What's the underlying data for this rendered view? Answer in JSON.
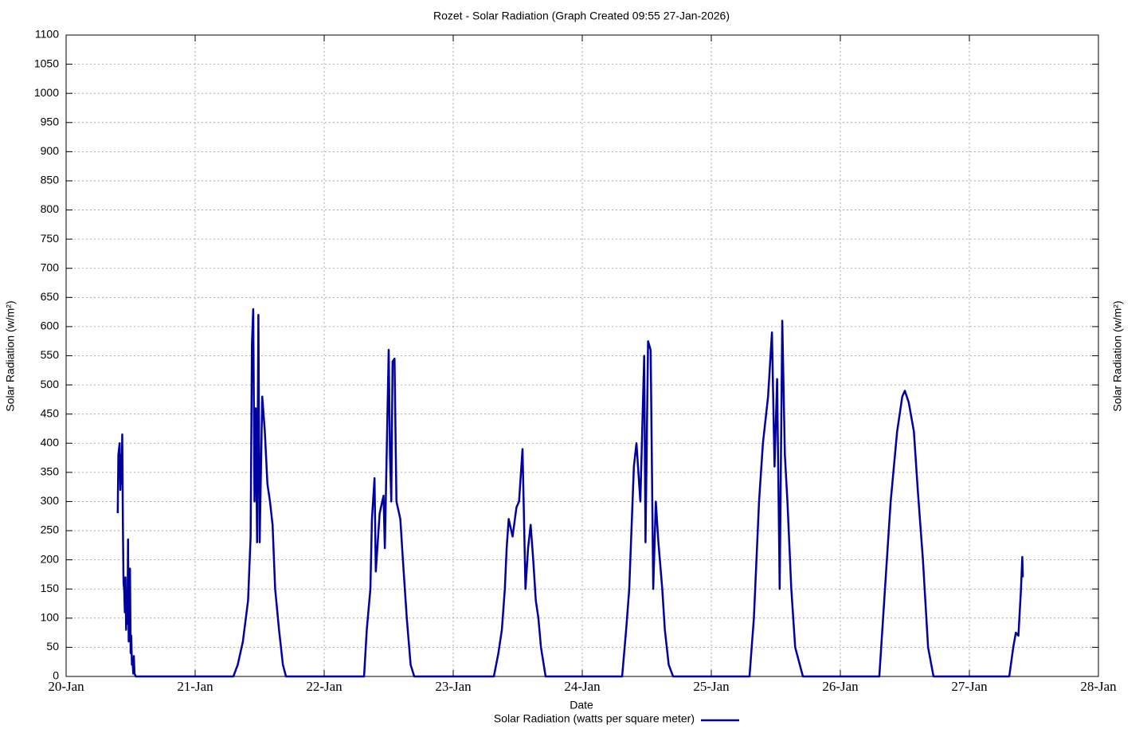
{
  "chart_data": {
    "type": "line",
    "title": "Rozet - Solar Radiation (Graph Created 09:55 27-Jan-2026)",
    "xlabel": "Date",
    "ylabel": "Solar Radiation (w/m²)",
    "y2label": "Solar Radiation (w/m²)",
    "xlim": [
      0,
      8
    ],
    "xticks": [
      {
        "value": 0,
        "label": "20-Jan"
      },
      {
        "value": 1,
        "label": "21-Jan"
      },
      {
        "value": 2,
        "label": "22-Jan"
      },
      {
        "value": 3,
        "label": "23-Jan"
      },
      {
        "value": 4,
        "label": "24-Jan"
      },
      {
        "value": 5,
        "label": "25-Jan"
      },
      {
        "value": 6,
        "label": "26-Jan"
      },
      {
        "value": 7,
        "label": "27-Jan"
      },
      {
        "value": 8,
        "label": "28-Jan"
      }
    ],
    "ylim": [
      0,
      1100
    ],
    "yticks": [
      0,
      50,
      100,
      150,
      200,
      250,
      300,
      350,
      400,
      450,
      500,
      550,
      600,
      650,
      700,
      750,
      800,
      850,
      900,
      950,
      1000,
      1050,
      1100
    ],
    "grid": true,
    "legend": "bottom",
    "series": [
      {
        "name": "Solar Radiation (watts per square meter)",
        "color": "#0000a0",
        "x": [
          0.4,
          0.405,
          0.415,
          0.42,
          0.425,
          0.43,
          0.435,
          0.44,
          0.445,
          0.45,
          0.455,
          0.46,
          0.465,
          0.47,
          0.475,
          0.48,
          0.485,
          0.49,
          0.495,
          0.5,
          0.505,
          0.51,
          0.515,
          0.52,
          0.525,
          0.53,
          0.54,
          1.296,
          1.33,
          1.37,
          1.41,
          1.43,
          1.44,
          1.45,
          1.46,
          1.47,
          1.48,
          1.49,
          1.5,
          1.52,
          1.54,
          1.56,
          1.58,
          1.6,
          1.62,
          1.65,
          1.68,
          1.704,
          2.309,
          2.33,
          2.358,
          2.37,
          2.39,
          2.4,
          2.43,
          2.46,
          2.47,
          2.5,
          2.51,
          2.52,
          2.53,
          2.545,
          2.56,
          2.59,
          2.61,
          2.64,
          2.67,
          2.698,
          3.315,
          3.35,
          3.377,
          3.4,
          3.414,
          3.43,
          3.46,
          3.49,
          3.51,
          3.537,
          3.56,
          3.58,
          3.6,
          3.62,
          3.64,
          3.66,
          3.68,
          3.716,
          4.309,
          4.34,
          4.364,
          4.4,
          4.42,
          4.45,
          4.48,
          4.49,
          4.51,
          4.53,
          4.55,
          4.57,
          4.59,
          4.62,
          4.64,
          4.67,
          4.704,
          5.296,
          5.33,
          5.35,
          5.37,
          5.4,
          5.44,
          5.47,
          5.49,
          5.51,
          5.53,
          5.55,
          5.57,
          5.59,
          5.62,
          5.65,
          5.71,
          6.302,
          6.34,
          6.39,
          6.44,
          6.48,
          6.5,
          6.53,
          6.57,
          6.6,
          6.64,
          6.68,
          6.722,
          7.309,
          7.34,
          7.36,
          7.38,
          7.4,
          7.41,
          7.414
        ],
        "values": [
          280,
          380,
          400,
          320,
          380,
          330,
          415,
          260,
          160,
          150,
          110,
          170,
          80,
          140,
          90,
          235,
          60,
          150,
          185,
          40,
          70,
          20,
          30,
          5,
          35,
          5,
          0,
          0,
          20,
          60,
          130,
          240,
          570,
          630,
          300,
          460,
          230,
          620,
          230,
          480,
          420,
          330,
          300,
          260,
          150,
          80,
          20,
          0,
          0,
          80,
          150,
          270,
          340,
          180,
          280,
          310,
          220,
          560,
          380,
          300,
          540,
          545,
          300,
          270,
          200,
          100,
          20,
          0,
          0,
          40,
          80,
          150,
          220,
          270,
          240,
          290,
          300,
          390,
          150,
          220,
          260,
          200,
          130,
          100,
          50,
          0,
          0,
          80,
          150,
          360,
          400,
          300,
          550,
          230,
          575,
          560,
          150,
          300,
          230,
          150,
          80,
          20,
          0,
          0,
          100,
          200,
          300,
          400,
          480,
          590,
          360,
          510,
          150,
          610,
          380,
          300,
          150,
          50,
          0,
          0,
          130,
          300,
          420,
          480,
          490,
          470,
          420,
          320,
          200,
          50,
          0,
          0,
          50,
          75,
          70,
          150,
          205,
          170
        ]
      }
    ]
  }
}
